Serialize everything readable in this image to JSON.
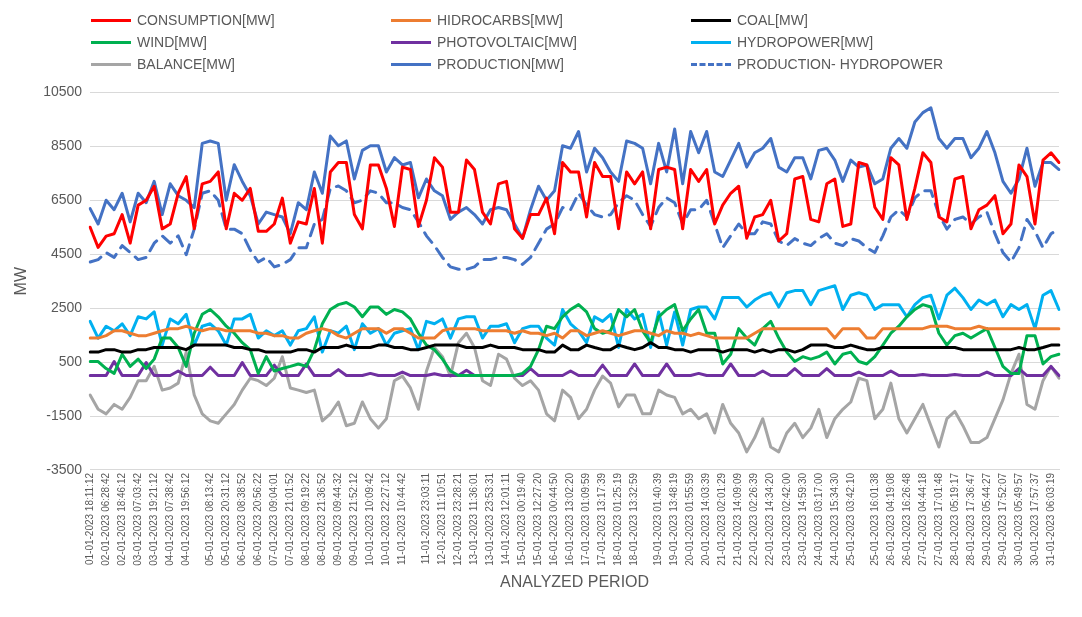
{
  "chart_data": {
    "type": "line",
    "xlabel": "ANALYZED PERIOD",
    "ylabel": "MW",
    "ylim": [
      -3500,
      10500
    ],
    "yticks": [
      -3500,
      -1500,
      500,
      2500,
      4500,
      6500,
      8500,
      10500
    ],
    "grid": "y",
    "legend": "top",
    "marker": "none",
    "categories": [
      "01-01-2023 18:11:12",
      null,
      "02-01-2023 06:28:42",
      null,
      "02-01-2023 18:46:12",
      null,
      "03-01-2023 07:03:42",
      null,
      "03-01-2023 19:21:12",
      null,
      "04-01-2023 07:38:42",
      null,
      "04-01-2023 19:56:12",
      null,
      null,
      "05-01-2023 08:13:42",
      null,
      "05-01-2023 20:31:12",
      null,
      "06-01-2023 08:38:52",
      null,
      "06-01-2023 20:56:22",
      null,
      "07-01-2023 09:04:01",
      null,
      "07-01-2023 21:01:52",
      null,
      "08-01-2023 09:19:22",
      null,
      "08-01-2023 21:36:52",
      null,
      "09-01-2023 09:44:32",
      null,
      "09-01-2023 21:52:12",
      null,
      "10-01-2023 10:09:42",
      null,
      "10-01-2023 22:27:12",
      null,
      "11-01-2023 10:44:42",
      null,
      null,
      "11-01-2023 23:03:11",
      null,
      "12-01-2023 11:10:51",
      null,
      "12-01-2023 23:28:21",
      null,
      "13-01-2023 11:36:01",
      null,
      "13-01-2023 23:53:31",
      null,
      "14-01-2023 12:01:11",
      null,
      "15-01-2023 00:19:40",
      null,
      "15-01-2023 12:27:20",
      null,
      "16-01-2023 00:44:50",
      null,
      "16-01-2023 13:02:20",
      null,
      "17-01-2023 01:09:59",
      null,
      "17-01-2023 13:17:39",
      null,
      "18-01-2023 01:25:19",
      null,
      "18-01-2023 13:32:59",
      null,
      null,
      "19-01-2023 01:40:39",
      null,
      "19-01-2023 13:48:19",
      null,
      "20-01-2023 01:55:59",
      null,
      "20-01-2023 14:03:39",
      null,
      "21-01-2023 02:01:29",
      null,
      "21-01-2023 14:09:09",
      null,
      "22-01-2023 02:26:39",
      null,
      "22-01-2023 14:34:20",
      null,
      "23-01-2023 02:42:00",
      null,
      "23-01-2023 14:59:30",
      null,
      "24-01-2023 03:17:00",
      null,
      "24-01-2023 15:34:30",
      null,
      "25-01-2023 03:42:10",
      null,
      null,
      "25-01-2023 16:01:38",
      null,
      "26-01-2023 04:19:08",
      null,
      "26-01-2023 16:26:48",
      null,
      "27-01-2023 04:44:18",
      null,
      "27-01-2023 17:01:48",
      null,
      "28-01-2023 05:19:17",
      null,
      "28-01-2023 17:36:47",
      null,
      "29-01-2023 05:44:27",
      null,
      "29-01-2023 17:52:07",
      null,
      "30-01-2023 05:49:57",
      null,
      "30-01-2023 17:57:37",
      null,
      "31-01-2023 06:03:19",
      null
    ],
    "series": [
      {
        "name": "CONSUMPTION[MW]",
        "color": "#ff0000",
        "values": [
          5500,
          4750,
          5170,
          5260,
          5970,
          4910,
          6320,
          6500,
          7020,
          5440,
          5620,
          6760,
          7380,
          5440,
          7110,
          7200,
          7550,
          5440,
          6760,
          6500,
          6940,
          5350,
          5350,
          5620,
          6580,
          4910,
          5700,
          5620,
          6940,
          4910,
          7550,
          7900,
          7900,
          5970,
          5440,
          7810,
          7810,
          6940,
          5530,
          7730,
          7640,
          5530,
          6500,
          8080,
          7730,
          6060,
          6060,
          7990,
          7640,
          6060,
          5620,
          7110,
          7200,
          5440,
          5090,
          5970,
          5970,
          6580,
          5260,
          7900,
          7550,
          7550,
          5880,
          7900,
          7380,
          7380,
          5440,
          7550,
          7110,
          7550,
          5440,
          7640,
          7730,
          7640,
          5440,
          7640,
          7200,
          7640,
          5620,
          6320,
          6760,
          7020,
          5090,
          5880,
          5970,
          6500,
          4990,
          5260,
          7290,
          7380,
          5790,
          5700,
          7110,
          7290,
          5530,
          5620,
          7900,
          7810,
          6240,
          5790,
          8080,
          7810,
          5790,
          6940,
          8260,
          7900,
          5880,
          5700,
          7290,
          7380,
          5440,
          6150,
          6320,
          6670,
          5260,
          5620,
          7810,
          7380,
          5620,
          7990,
          8260,
          7900
        ]
      },
      {
        "name": "HIDROCARBS[MW]",
        "color": "#ed7d31",
        "values": [
          1390,
          1390,
          1480,
          1660,
          1660,
          1570,
          1480,
          1480,
          1570,
          1660,
          1740,
          1740,
          1830,
          1740,
          1660,
          1740,
          1740,
          1660,
          1660,
          1660,
          1660,
          1570,
          1570,
          1480,
          1480,
          1390,
          1390,
          1570,
          1660,
          1740,
          1660,
          1480,
          1390,
          1570,
          1740,
          1740,
          1740,
          1570,
          1740,
          1740,
          1570,
          1390,
          1390,
          1390,
          1660,
          1740,
          1740,
          1740,
          1740,
          1660,
          1660,
          1660,
          1660,
          1570,
          1660,
          1570,
          1570,
          1480,
          1570,
          1390,
          1660,
          1660,
          1480,
          1570,
          1660,
          1570,
          1480,
          1570,
          1660,
          1660,
          1570,
          1480,
          1660,
          1570,
          1570,
          1480,
          1570,
          1480,
          1390,
          1390,
          1390,
          1390,
          1390,
          1570,
          1740,
          1740,
          1740,
          1740,
          1740,
          1740,
          1740,
          1740,
          1740,
          1390,
          1740,
          1740,
          1740,
          1390,
          1390,
          1740,
          1740,
          1740,
          1740,
          1740,
          1740,
          1830,
          1830,
          1830,
          1740,
          1740,
          1740,
          1830,
          1740,
          1740,
          1740,
          1740,
          1740,
          1740,
          1740,
          1740,
          1740,
          1740
        ]
      },
      {
        "name": "COAL[MW]",
        "color": "#000000",
        "values": [
          870,
          870,
          960,
          960,
          870,
          870,
          960,
          960,
          1040,
          1040,
          1040,
          1040,
          960,
          1130,
          1130,
          1130,
          1130,
          1130,
          1040,
          1040,
          960,
          960,
          870,
          870,
          870,
          870,
          960,
          960,
          870,
          1040,
          1040,
          1040,
          1130,
          1040,
          1040,
          1040,
          1130,
          1130,
          1040,
          1040,
          960,
          960,
          1040,
          1130,
          1130,
          1130,
          1130,
          1040,
          1040,
          1040,
          1130,
          1040,
          1040,
          1040,
          960,
          960,
          960,
          870,
          870,
          1130,
          960,
          960,
          1130,
          1040,
          960,
          960,
          1130,
          1040,
          960,
          1040,
          1220,
          1040,
          1040,
          960,
          960,
          870,
          960,
          960,
          960,
          870,
          960,
          960,
          960,
          870,
          960,
          870,
          960,
          960,
          870,
          960,
          1130,
          1130,
          1130,
          1040,
          1040,
          1130,
          1040,
          960,
          960,
          1040,
          1040,
          1040,
          1040,
          1040,
          1040,
          1040,
          1040,
          1040,
          1040,
          960,
          960,
          960,
          960,
          960,
          960,
          960,
          1040,
          960,
          960,
          1040,
          1130,
          1130
        ]
      },
      {
        "name": "WIND[MW]",
        "color": "#00b050",
        "values": [
          520,
          520,
          260,
          80,
          790,
          340,
          610,
          260,
          610,
          1390,
          1390,
          1040,
          340,
          1570,
          2270,
          2450,
          2180,
          1830,
          1570,
          1220,
          960,
          80,
          700,
          170,
          260,
          340,
          430,
          340,
          960,
          1920,
          2450,
          2630,
          2710,
          2540,
          2180,
          2540,
          2540,
          2270,
          2450,
          2360,
          2100,
          1570,
          1130,
          960,
          610,
          170,
          0,
          0,
          0,
          0,
          0,
          0,
          0,
          0,
          80,
          340,
          960,
          1830,
          1740,
          2180,
          2450,
          2630,
          2360,
          1740,
          1570,
          1660,
          2450,
          2180,
          2450,
          1660,
          1220,
          2180,
          2450,
          2630,
          1660,
          2100,
          2450,
          1570,
          1570,
          430,
          790,
          1740,
          1390,
          1130,
          1740,
          2010,
          1390,
          870,
          520,
          700,
          610,
          700,
          870,
          430,
          790,
          870,
          520,
          430,
          700,
          1130,
          1570,
          1830,
          2180,
          2450,
          2630,
          2540,
          1570,
          1130,
          1480,
          1570,
          1390,
          1570,
          1740,
          1040,
          340,
          80,
          80,
          1480,
          1480,
          430,
          700,
          790
        ]
      },
      {
        "name": "PHOTOVOLTAIC[MW]",
        "color": "#7030a0",
        "values": [
          0,
          0,
          0,
          520,
          0,
          0,
          0,
          480,
          0,
          0,
          0,
          170,
          0,
          0,
          0,
          310,
          0,
          0,
          0,
          480,
          0,
          0,
          0,
          390,
          0,
          0,
          0,
          430,
          0,
          0,
          0,
          220,
          0,
          0,
          0,
          80,
          0,
          0,
          0,
          130,
          0,
          0,
          0,
          70,
          0,
          0,
          0,
          200,
          0,
          0,
          0,
          0,
          0,
          0,
          0,
          260,
          0,
          0,
          0,
          0,
          170,
          0,
          0,
          0,
          390,
          0,
          0,
          0,
          430,
          0,
          0,
          0,
          430,
          0,
          0,
          0,
          80,
          0,
          0,
          0,
          430,
          0,
          0,
          0,
          170,
          0,
          0,
          0,
          260,
          0,
          0,
          0,
          260,
          0,
          0,
          0,
          130,
          0,
          0,
          0,
          170,
          0,
          0,
          0,
          40,
          0,
          0,
          0,
          40,
          0,
          0,
          0,
          130,
          0,
          0,
          0,
          260,
          0,
          0,
          0,
          340,
          0
        ]
      },
      {
        "name": "HYDROPOWER[MW]",
        "color": "#00b0f0",
        "values": [
          2010,
          1390,
          1830,
          1660,
          1920,
          1480,
          2180,
          2100,
          2360,
          1130,
          2100,
          1920,
          2270,
          1130,
          1830,
          1920,
          1660,
          1130,
          2100,
          2100,
          2270,
          1390,
          1660,
          1480,
          1660,
          1130,
          1660,
          1740,
          2180,
          870,
          1660,
          1570,
          1830,
          960,
          1920,
          1570,
          1740,
          1130,
          1570,
          1660,
          1740,
          960,
          2010,
          1920,
          2100,
          1390,
          2100,
          2180,
          2180,
          1390,
          1830,
          1830,
          1920,
          1220,
          1740,
          1830,
          1830,
          1390,
          1130,
          2450,
          1920,
          1660,
          1220,
          2180,
          2010,
          2270,
          1040,
          2450,
          2100,
          2270,
          1040,
          2360,
          1130,
          2360,
          1130,
          2450,
          2540,
          2540,
          2100,
          2890,
          2890,
          2890,
          2540,
          2800,
          2980,
          3070,
          2540,
          3070,
          3150,
          3150,
          2630,
          3150,
          3240,
          3330,
          2450,
          2980,
          3070,
          2980,
          2450,
          2630,
          2630,
          2630,
          2180,
          2630,
          2890,
          2980,
          2100,
          2980,
          3240,
          2890,
          2450,
          2800,
          2630,
          2800,
          2180,
          2630,
          2450,
          2630,
          1740,
          2980,
          3150,
          2450
        ]
      },
      {
        "name": "BALANCE[MW]",
        "color": "#a5a5a5",
        "values": [
          -720,
          -1250,
          -1420,
          -1070,
          -1250,
          -810,
          -190,
          -190,
          340,
          -540,
          -460,
          -280,
          870,
          -720,
          -1420,
          -1680,
          -1770,
          -1420,
          -1070,
          -540,
          -100,
          -190,
          -370,
          -100,
          700,
          -460,
          -540,
          -630,
          -540,
          -1680,
          -1420,
          -980,
          -1860,
          -1770,
          -980,
          -1600,
          -1950,
          -1600,
          -190,
          -20,
          -460,
          -1250,
          160,
          1040,
          700,
          -20,
          1220,
          1570,
          1040,
          -190,
          -370,
          790,
          610,
          -100,
          -370,
          -190,
          -540,
          -1420,
          -1680,
          -540,
          -810,
          -1600,
          -1250,
          -540,
          -20,
          -280,
          -1160,
          -720,
          -720,
          -1420,
          -1420,
          -540,
          -720,
          -810,
          -1420,
          -1250,
          -1600,
          -1420,
          -2130,
          -1070,
          -1770,
          -2130,
          -2830,
          -2300,
          -1600,
          -2650,
          -2830,
          -2130,
          -1770,
          -2300,
          -1950,
          -1250,
          -2300,
          -1600,
          -1250,
          -980,
          -100,
          -190,
          -1600,
          -1250,
          -280,
          -1600,
          -2130,
          -1600,
          -1070,
          -1860,
          -2650,
          -1600,
          -1330,
          -1860,
          -2480,
          -2480,
          -2300,
          -1600,
          -900,
          70,
          790,
          -1070,
          -1250,
          -190,
          340,
          -100
        ]
      },
      {
        "name": "PRODUCTION[MW]",
        "color": "#4472c4",
        "values": [
          6190,
          5620,
          6500,
          6150,
          6760,
          5700,
          6760,
          6410,
          7200,
          5970,
          7110,
          6670,
          6500,
          6230,
          8610,
          8700,
          8610,
          6500,
          7820,
          7200,
          6670,
          5620,
          6060,
          5970,
          5880,
          5260,
          6410,
          6150,
          7550,
          6760,
          8880,
          8520,
          8700,
          7290,
          8350,
          8520,
          8520,
          7550,
          8080,
          7810,
          7900,
          6590,
          7290,
          6850,
          6670,
          5790,
          6060,
          6230,
          5970,
          5620,
          6150,
          6230,
          6150,
          5620,
          5090,
          6150,
          7020,
          6500,
          6850,
          8520,
          8430,
          9050,
          7550,
          8430,
          8080,
          7550,
          7200,
          8700,
          8610,
          8430,
          7110,
          8610,
          7550,
          9140,
          7110,
          9050,
          8260,
          9050,
          7550,
          7380,
          7990,
          8610,
          7730,
          8260,
          8430,
          8790,
          7730,
          7550,
          8080,
          8080,
          7290,
          8350,
          8430,
          7990,
          7200,
          7990,
          7730,
          7810,
          7110,
          7290,
          8430,
          8790,
          8430,
          9400,
          9750,
          9930,
          8790,
          8430,
          8790,
          8790,
          8080,
          8430,
          9050,
          8260,
          7200,
          6760,
          7290,
          8430,
          7020,
          7900,
          7900,
          7640
        ]
      },
      {
        "name": "PRODUCTION- HYDROPOWER",
        "color": "#4472c4",
        "line_style": "dashed",
        "values": [
          4210,
          4300,
          4560,
          4380,
          4820,
          4560,
          4300,
          4380,
          4910,
          5180,
          4910,
          5180,
          4480,
          5430,
          6760,
          6850,
          6500,
          5430,
          5430,
          5260,
          4650,
          4210,
          4380,
          4030,
          4120,
          4300,
          4740,
          4740,
          5620,
          5790,
          6940,
          7030,
          6850,
          6410,
          6500,
          6850,
          6760,
          6410,
          6410,
          6230,
          6150,
          5700,
          5180,
          4820,
          4380,
          4030,
          3940,
          3940,
          4030,
          4300,
          4300,
          4380,
          4380,
          4300,
          4120,
          4380,
          4910,
          5430,
          5620,
          6230,
          6150,
          6760,
          6320,
          5970,
          5880,
          5970,
          6410,
          6670,
          6500,
          5970,
          5530,
          6230,
          6590,
          6410,
          5620,
          6150,
          6150,
          6500,
          5620,
          4740,
          5180,
          5620,
          5260,
          5260,
          5700,
          5620,
          4990,
          4820,
          5080,
          4910,
          4820,
          5080,
          5260,
          4910,
          4820,
          5080,
          4990,
          4740,
          4560,
          5180,
          5880,
          6150,
          5880,
          6590,
          6850,
          6850,
          5970,
          5430,
          5790,
          5880,
          5620,
          5880,
          6060,
          5260,
          4560,
          4210,
          4740,
          5790,
          5350,
          4740,
          5260,
          5430
        ]
      }
    ]
  }
}
